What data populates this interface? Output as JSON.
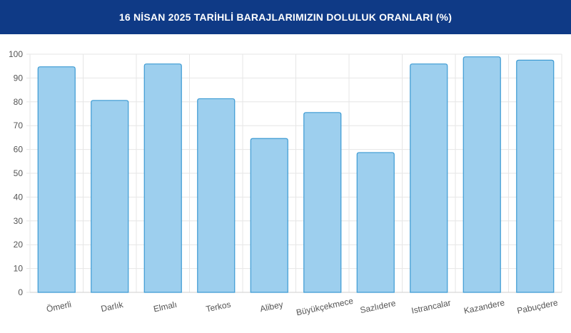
{
  "header": {
    "title": "16 NİSAN 2025 TARİHLİ BARAJLARIMIZIN DOLULUK ORANLARI (%)"
  },
  "colors": {
    "header_bg": "#0f3a86",
    "bar_fill": "#9dcfee",
    "bar_stroke": "#3d9bd3",
    "grid": "#e6e6e6",
    "tick_text": "#555555"
  },
  "chart_data": {
    "type": "bar",
    "title": "16 NİSAN 2025 TARİHLİ BARAJLARIMIZIN DOLULUK ORANLARI (%)",
    "xlabel": "",
    "ylabel": "",
    "ylim": [
      0,
      100
    ],
    "yticks": [
      0,
      10,
      20,
      30,
      40,
      50,
      60,
      70,
      80,
      90,
      100
    ],
    "grid": true,
    "legend": "none",
    "categories": [
      "Ömerli",
      "Darlık",
      "Elmalı",
      "Terkos",
      "Alibey",
      "Büyükçekmece",
      "Sazlıdere",
      "Istrancalar",
      "Kazandere",
      "Pabuçdere"
    ],
    "values": [
      94.7,
      80.6,
      95.9,
      81.3,
      64.6,
      75.5,
      58.7,
      95.9,
      98.9,
      97.5
    ]
  }
}
